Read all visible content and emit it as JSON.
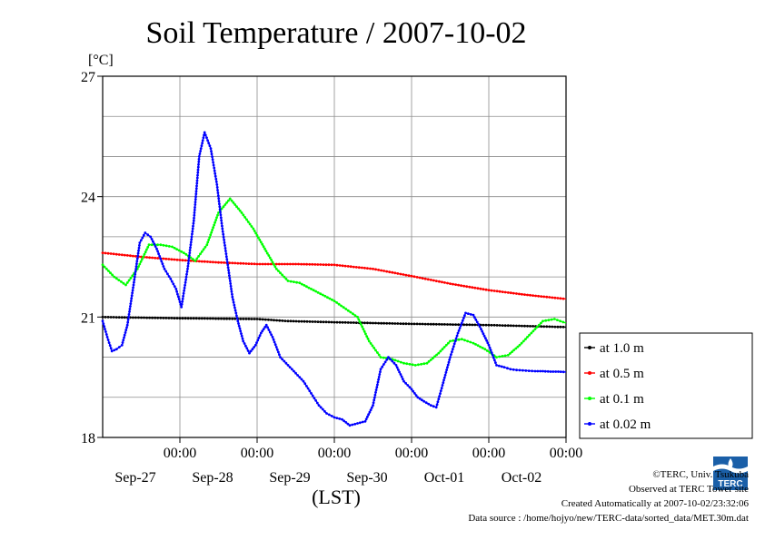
{
  "chart_data": {
    "type": "line",
    "title": "Soil Temperature / 2007-10-02",
    "y_unit": "[°C]",
    "xlabel": "(LST)",
    "ylim": [
      18,
      27
    ],
    "yticks": [
      18,
      21,
      24,
      27
    ],
    "xlim": [
      0,
      6
    ],
    "grid": true,
    "legend_position": "right",
    "xticks": [
      {
        "time": "00:00",
        "date": "Sep-27",
        "x": 1
      },
      {
        "time": "00:00",
        "date": "Sep-28",
        "x": 2
      },
      {
        "time": "00:00",
        "date": "Sep-29",
        "x": 3
      },
      {
        "time": "00:00",
        "date": "Sep-30",
        "x": 4
      },
      {
        "time": "00:00",
        "date": "Oct-01",
        "x": 5
      },
      {
        "time": "00:00",
        "date": "Oct-02",
        "x": 6
      }
    ],
    "series": [
      {
        "name": "at 1.0 m",
        "color": "#000000",
        "x": [
          0,
          1,
          2,
          2.4,
          3,
          4,
          5,
          6
        ],
        "y": [
          21.0,
          20.97,
          20.95,
          20.9,
          20.87,
          20.83,
          20.8,
          20.75
        ]
      },
      {
        "name": "at 0.5 m",
        "color": "#ff0000",
        "x": [
          0,
          0.5,
          1,
          1.5,
          2,
          2.5,
          3,
          3.5,
          4,
          4.5,
          5,
          5.5,
          6
        ],
        "y": [
          22.6,
          22.5,
          22.42,
          22.36,
          22.32,
          22.32,
          22.3,
          22.2,
          22.02,
          21.83,
          21.67,
          21.55,
          21.45
        ]
      },
      {
        "name": "at 0.1 m",
        "color": "#00ff00",
        "x": [
          0,
          0.15,
          0.3,
          0.45,
          0.6,
          0.75,
          0.9,
          1.05,
          1.2,
          1.35,
          1.5,
          1.65,
          1.8,
          1.95,
          2.1,
          2.25,
          2.4,
          2.55,
          2.7,
          2.85,
          3.0,
          3.15,
          3.3,
          3.45,
          3.6,
          3.75,
          3.9,
          4.05,
          4.2,
          4.35,
          4.5,
          4.65,
          4.8,
          4.95,
          5.1,
          5.25,
          5.4,
          5.55,
          5.7,
          5.85,
          6.0
        ],
        "y": [
          22.3,
          22.0,
          21.8,
          22.2,
          22.8,
          22.8,
          22.75,
          22.6,
          22.4,
          22.8,
          23.6,
          23.95,
          23.6,
          23.2,
          22.7,
          22.2,
          21.9,
          21.85,
          21.7,
          21.55,
          21.4,
          21.2,
          21.0,
          20.4,
          20.0,
          19.95,
          19.85,
          19.8,
          19.85,
          20.1,
          20.4,
          20.45,
          20.35,
          20.2,
          20.0,
          20.05,
          20.3,
          20.6,
          20.9,
          20.95,
          20.85
        ]
      },
      {
        "name": "at 0.02 m",
        "color": "#0000ff",
        "x": [
          0,
          0.06,
          0.12,
          0.18,
          0.25,
          0.32,
          0.4,
          0.48,
          0.55,
          0.62,
          0.7,
          0.8,
          0.88,
          0.95,
          1.02,
          1.1,
          1.18,
          1.25,
          1.32,
          1.4,
          1.48,
          1.55,
          1.62,
          1.68,
          1.75,
          1.82,
          1.9,
          1.98,
          2.05,
          2.12,
          2.2,
          2.3,
          2.4,
          2.5,
          2.6,
          2.7,
          2.8,
          2.9,
          3.0,
          3.1,
          3.2,
          3.3,
          3.4,
          3.5,
          3.6,
          3.7,
          3.8,
          3.9,
          4.0,
          4.08,
          4.16,
          4.25,
          4.32,
          4.4,
          4.5,
          4.6,
          4.7,
          4.8,
          4.9,
          5.0,
          5.1,
          5.2,
          5.28,
          5.36,
          5.44,
          5.52,
          5.6,
          5.7,
          5.8,
          5.9,
          6.0
        ],
        "y": [
          20.9,
          20.5,
          20.15,
          20.2,
          20.3,
          20.8,
          21.8,
          22.85,
          23.1,
          23.0,
          22.7,
          22.2,
          21.95,
          21.7,
          21.25,
          22.2,
          23.4,
          25.0,
          25.6,
          25.2,
          24.3,
          23.2,
          22.3,
          21.5,
          20.9,
          20.4,
          20.1,
          20.3,
          20.6,
          20.8,
          20.5,
          20.0,
          19.8,
          19.6,
          19.4,
          19.1,
          18.8,
          18.6,
          18.5,
          18.45,
          18.3,
          18.35,
          18.4,
          18.8,
          19.7,
          20.0,
          19.8,
          19.4,
          19.2,
          19.0,
          18.9,
          18.8,
          18.75,
          19.3,
          20.0,
          20.6,
          21.1,
          21.05,
          20.7,
          20.3,
          19.8,
          19.75,
          19.7,
          19.68,
          19.67,
          19.66,
          19.65,
          19.65,
          19.64,
          19.64,
          19.63
        ]
      }
    ]
  },
  "footer": {
    "copyright": "©TERC, Univ. Tsukuba",
    "site": "Observed at TERC Tower site",
    "created": "Created Automatically at 2007-10-02/23:32:06",
    "source": "Data source : /home/hojyo/new/TERC-data/sorted_data/MET.30m.dat"
  },
  "logo": {
    "text": "TERC"
  }
}
